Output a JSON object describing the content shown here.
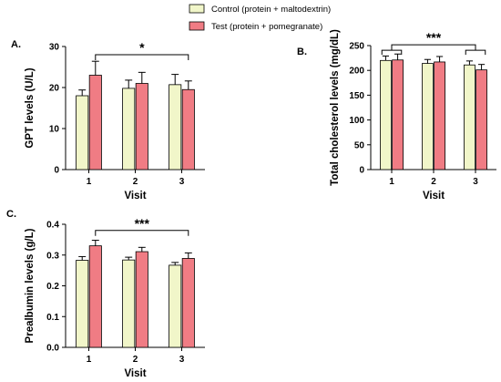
{
  "legend": {
    "entries": [
      {
        "label": "Control (protein + maltodextrin)",
        "color": "#f1f6c9"
      },
      {
        "label": "Test (protein + pomegranate)",
        "color": "#f07c84"
      }
    ]
  },
  "chart_data": [
    {
      "id": "A",
      "panel_label": "A.",
      "type": "bar",
      "xlabel": "Visit",
      "ylabel": "GPT levels (U/L)",
      "categories": [
        "1",
        "2",
        "3"
      ],
      "ylim": [
        0,
        30
      ],
      "yticks": [
        0,
        10,
        20,
        30
      ],
      "series": [
        {
          "name": "Control (protein + maltodextrin)",
          "values": [
            18,
            19.8,
            20.7
          ],
          "errors": [
            1.4,
            2.0,
            2.5
          ]
        },
        {
          "name": "Test (protein + pomegranate)",
          "values": [
            23,
            21,
            19.5
          ],
          "errors": [
            3.4,
            2.7,
            2.1
          ]
        }
      ],
      "annotation": {
        "label": "*",
        "from": "1",
        "to": "3",
        "y": 28,
        "style": "line"
      }
    },
    {
      "id": "B",
      "panel_label": "B.",
      "type": "bar",
      "xlabel": "Visit",
      "ylabel": "Total cholesterol levels (mg/dL)",
      "categories": [
        "1",
        "2",
        "3"
      ],
      "ylim": [
        0,
        250
      ],
      "yticks": [
        0,
        50,
        100,
        150,
        200,
        250
      ],
      "series": [
        {
          "name": "Control (protein + maltodextrin)",
          "values": [
            220,
            214,
            211
          ],
          "errors": [
            9,
            8,
            8
          ]
        },
        {
          "name": "Test (protein + pomegranate)",
          "values": [
            221,
            217,
            201
          ],
          "errors": [
            12,
            11,
            11
          ]
        }
      ],
      "annotation": {
        "label": "***",
        "from": "1",
        "to": "3",
        "y": 248,
        "style": "bracket"
      }
    },
    {
      "id": "C",
      "panel_label": "C.",
      "type": "bar",
      "xlabel": "Visit",
      "ylabel": "Prealbumin levels (g/L)",
      "categories": [
        "1",
        "2",
        "3"
      ],
      "ylim": [
        0,
        0.4
      ],
      "yticks": [
        0.0,
        0.1,
        0.2,
        0.3,
        0.4
      ],
      "series": [
        {
          "name": "Control (protein + maltodextrin)",
          "values": [
            0.283,
            0.284,
            0.267
          ],
          "errors": [
            0.012,
            0.009,
            0.009
          ]
        },
        {
          "name": "Test (protein + pomegranate)",
          "values": [
            0.33,
            0.311,
            0.289
          ],
          "errors": [
            0.018,
            0.014,
            0.018
          ]
        }
      ],
      "annotation": {
        "label": "***",
        "from": "1",
        "to": "3",
        "y": 0.38,
        "style": "line"
      }
    }
  ]
}
